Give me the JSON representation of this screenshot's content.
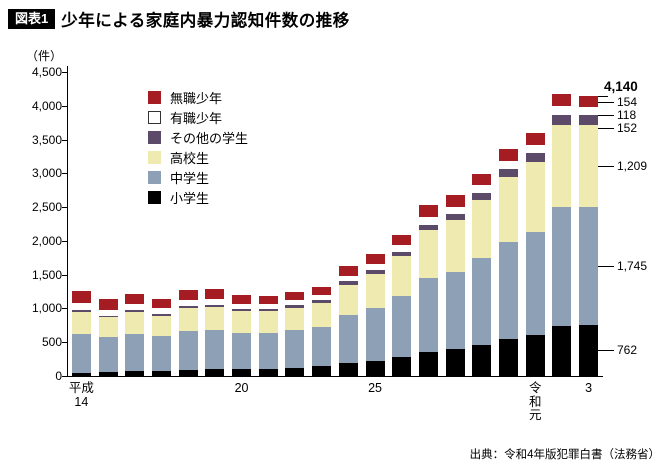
{
  "header": {
    "tag": "図表1",
    "title": "少年による家庭内暴力認知件数の推移"
  },
  "footer": {
    "source": "出典：令和4年版犯罪白書（法務省）"
  },
  "chart_data": {
    "type": "bar",
    "stacked": true,
    "title": "少年による家庭内暴力認知件数の推移",
    "ylabel": "（件）",
    "ylim": [
      0,
      4500
    ],
    "y_tick_step": 500,
    "y_tick_labels": [
      "0",
      "500",
      "1,000",
      "1,500",
      "2,000",
      "2,500",
      "3,000",
      "3,500",
      "4,000",
      "4,500"
    ],
    "grid": false,
    "legend_position": "inside-top-left",
    "legend_order_top_to_bottom": [
      "無職少年",
      "有職少年",
      "その他の学生",
      "高校生",
      "中学生",
      "小学生"
    ],
    "categories": [
      "平成14",
      "平成15",
      "平成16",
      "平成17",
      "平成18",
      "平成19",
      "平成20",
      "平成21",
      "平成22",
      "平成23",
      "平成24",
      "平成25",
      "平成26",
      "平成27",
      "平成28",
      "平成29",
      "平成30",
      "令和元",
      "令和2",
      "令和3"
    ],
    "x_ticks": [
      {
        "index": 0,
        "lines": [
          "平成",
          "14"
        ]
      },
      {
        "index": 6,
        "lines": [
          "20"
        ]
      },
      {
        "index": 11,
        "lines": [
          "25"
        ]
      },
      {
        "index": 17,
        "lines": [
          "令",
          "和",
          "元"
        ]
      },
      {
        "index": 19,
        "lines": [
          "3"
        ]
      }
    ],
    "series": [
      {
        "id": "elementary",
        "name": "小学生",
        "color": "#000000",
        "stroke": false,
        "values": [
          50,
          54,
          67,
          72,
          90,
          100,
          102,
          110,
          125,
          143,
          189,
          224,
          275,
          352,
          393,
          463,
          546,
          610,
          741,
          762
        ]
      },
      {
        "id": "junior-high",
        "name": "中学生",
        "color": "#8ea0b5",
        "stroke": false,
        "values": [
          577,
          520,
          555,
          518,
          577,
          577,
          534,
          526,
          549,
          581,
          713,
          789,
          909,
          1095,
          1152,
          1284,
          1434,
          1526,
          1763,
          1745
        ]
      },
      {
        "id": "high-school",
        "name": "高校生",
        "color": "#eeeab0",
        "stroke": false,
        "values": [
          326,
          297,
          321,
          302,
          341,
          344,
          323,
          321,
          339,
          362,
          450,
          503,
          586,
          713,
          759,
          855,
          966,
          1038,
          1213,
          1209
        ]
      },
      {
        "id": "other-students",
        "name": "その他の学生",
        "color": "#5b4a68",
        "stroke": false,
        "values": [
          25,
          24,
          27,
          26,
          30,
          31,
          30,
          31,
          34,
          37,
          47,
          54,
          64,
          80,
          87,
          100,
          115,
          127,
          151,
          152
        ]
      },
      {
        "id": "employed",
        "name": "有職少年",
        "color": "#ffffff",
        "stroke": true,
        "values": [
          100,
          88,
          91,
          82,
          88,
          85,
          76,
          72,
          72,
          73,
          86,
          91,
          100,
          114,
          113,
          119,
          125,
          124,
          132,
          118
        ]
      },
      {
        "id": "unemployed",
        "name": "無職少年",
        "color": "#a51d23",
        "stroke": false,
        "values": [
          175,
          153,
          157,
          141,
          151,
          146,
          129,
          121,
          120,
          121,
          140,
          145,
          157,
          177,
          172,
          175,
          179,
          171,
          177,
          154
        ]
      }
    ],
    "totals": [
      1253,
      1136,
      1218,
      1141,
      1277,
      1283,
      1194,
      1181,
      1239,
      1317,
      1625,
      1806,
      2091,
      2531,
      2676,
      2996,
      3365,
      3596,
      4177,
      4140
    ],
    "annotations": {
      "total_label": "4,140",
      "segments": [
        {
          "series_id": "unemployed",
          "label": "154"
        },
        {
          "series_id": "employed",
          "label": "118"
        },
        {
          "series_id": "other-students",
          "label": "152"
        },
        {
          "series_id": "high-school",
          "label": "1,209"
        },
        {
          "series_id": "junior-high",
          "label": "1,745"
        },
        {
          "series_id": "elementary",
          "label": "762"
        }
      ]
    }
  }
}
